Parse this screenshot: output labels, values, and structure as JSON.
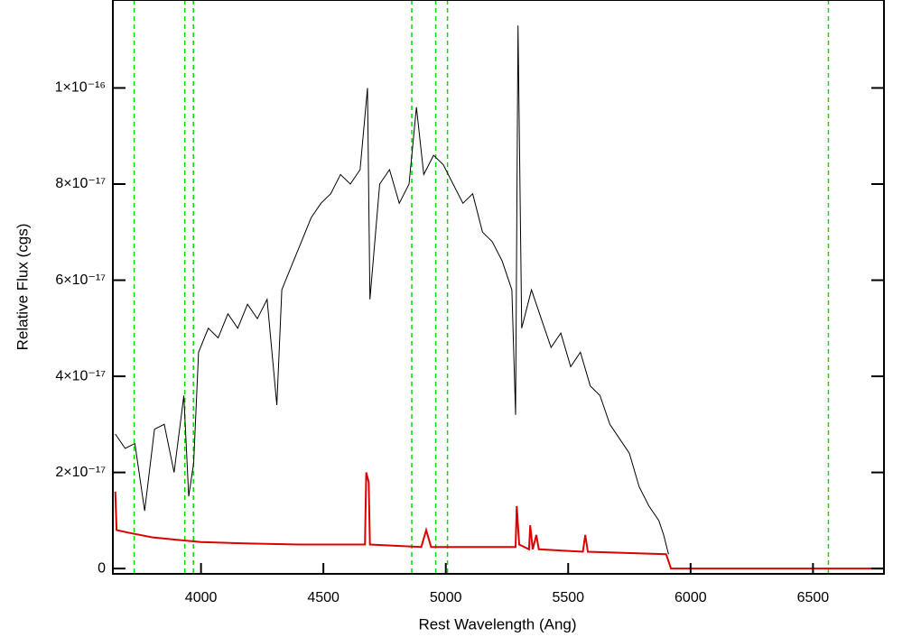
{
  "chart_data": {
    "type": "line",
    "x_label": "Rest Wavelength (Ang)",
    "y_label": "Relative Flux (cgs)",
    "xlim": [
      3640,
      6790
    ],
    "ylim": [
      -1.1e-18,
      1.183e-16
    ],
    "xticks": [
      4000,
      4500,
      5000,
      5500,
      6000,
      6500
    ],
    "yticks": [
      0,
      {
        "value": 2e-17,
        "label": "2×10⁻¹⁷"
      },
      {
        "value": 4e-17,
        "label": "4×10⁻¹⁷"
      },
      {
        "value": 6e-17,
        "label": "6×10⁻¹⁷"
      },
      {
        "value": 8e-17,
        "label": "8×10⁻¹⁷"
      },
      {
        "value": 1e-16,
        "label": "1×10⁻¹⁶"
      }
    ],
    "vlines": {
      "color": "#00dd00",
      "x": [
        3727,
        3934,
        3969,
        4861,
        4959,
        5007,
        6563
      ]
    },
    "series": [
      {
        "color": "#000000",
        "x": [
          3650,
          3690,
          3730,
          3770,
          3810,
          3850,
          3890,
          3930,
          3950,
          3970,
          3990,
          4030,
          4070,
          4110,
          4150,
          4190,
          4230,
          4270,
          4310,
          4330,
          4370,
          4410,
          4450,
          4490,
          4530,
          4570,
          4610,
          4650,
          4680,
          4690,
          4730,
          4770,
          4810,
          4850,
          4880,
          4910,
          4950,
          4990,
          5030,
          5070,
          5110,
          5150,
          5190,
          5230,
          5270,
          5285,
          5295,
          5310,
          5350,
          5390,
          5430,
          5470,
          5510,
          5550,
          5590,
          5630,
          5670,
          5710,
          5750,
          5790,
          5830,
          5870,
          5890,
          5910
        ],
        "values": [
          2.8e-17,
          2.5e-17,
          2.6e-17,
          1.2e-17,
          2.9e-17,
          3e-17,
          2e-17,
          3.6e-17,
          1.5e-17,
          2.2e-17,
          4.5e-17,
          5e-17,
          4.8e-17,
          5.3e-17,
          5e-17,
          5.5e-17,
          5.2e-17,
          5.6e-17,
          3.4e-17,
          5.8e-17,
          6.3e-17,
          6.8e-17,
          7.3e-17,
          7.6e-17,
          7.8e-17,
          8.2e-17,
          8e-17,
          8.3e-17,
          1e-16,
          5.6e-17,
          8e-17,
          8.3e-17,
          7.6e-17,
          8e-17,
          9.6e-17,
          8.2e-17,
          8.6e-17,
          8.4e-17,
          8e-17,
          7.6e-17,
          7.8e-17,
          7e-17,
          6.8e-17,
          6.4e-17,
          5.8e-17,
          3.2e-17,
          1.13e-16,
          5e-17,
          5.8e-17,
          5.2e-17,
          4.6e-17,
          4.9e-17,
          4.2e-17,
          4.5e-17,
          3.8e-17,
          3.6e-17,
          3e-17,
          2.7e-17,
          2.4e-17,
          1.7e-17,
          1.3e-17,
          1e-17,
          7e-18,
          3e-18
        ]
      },
      {
        "color": "#dd0000",
        "x": [
          3650,
          3655,
          3700,
          3800,
          3900,
          4000,
          4200,
          4400,
          4600,
          4670,
          4675,
          4685,
          4690,
          4900,
          4920,
          4940,
          5200,
          5285,
          5290,
          5300,
          5340,
          5345,
          5355,
          5370,
          5380,
          5560,
          5570,
          5580,
          5900,
          5920,
          6790
        ],
        "values": [
          1.6e-17,
          8e-18,
          7.5e-18,
          6.5e-18,
          6e-18,
          5.5e-18,
          5.2e-18,
          5e-18,
          5e-18,
          5e-18,
          2e-17,
          1.8e-17,
          5e-18,
          4.5e-18,
          8e-18,
          4.5e-18,
          4.5e-18,
          4.5e-18,
          1.3e-17,
          5e-18,
          4e-18,
          9e-18,
          4e-18,
          7e-18,
          4e-18,
          3.5e-18,
          7e-18,
          3.5e-18,
          3e-18,
          0,
          0
        ]
      }
    ]
  }
}
